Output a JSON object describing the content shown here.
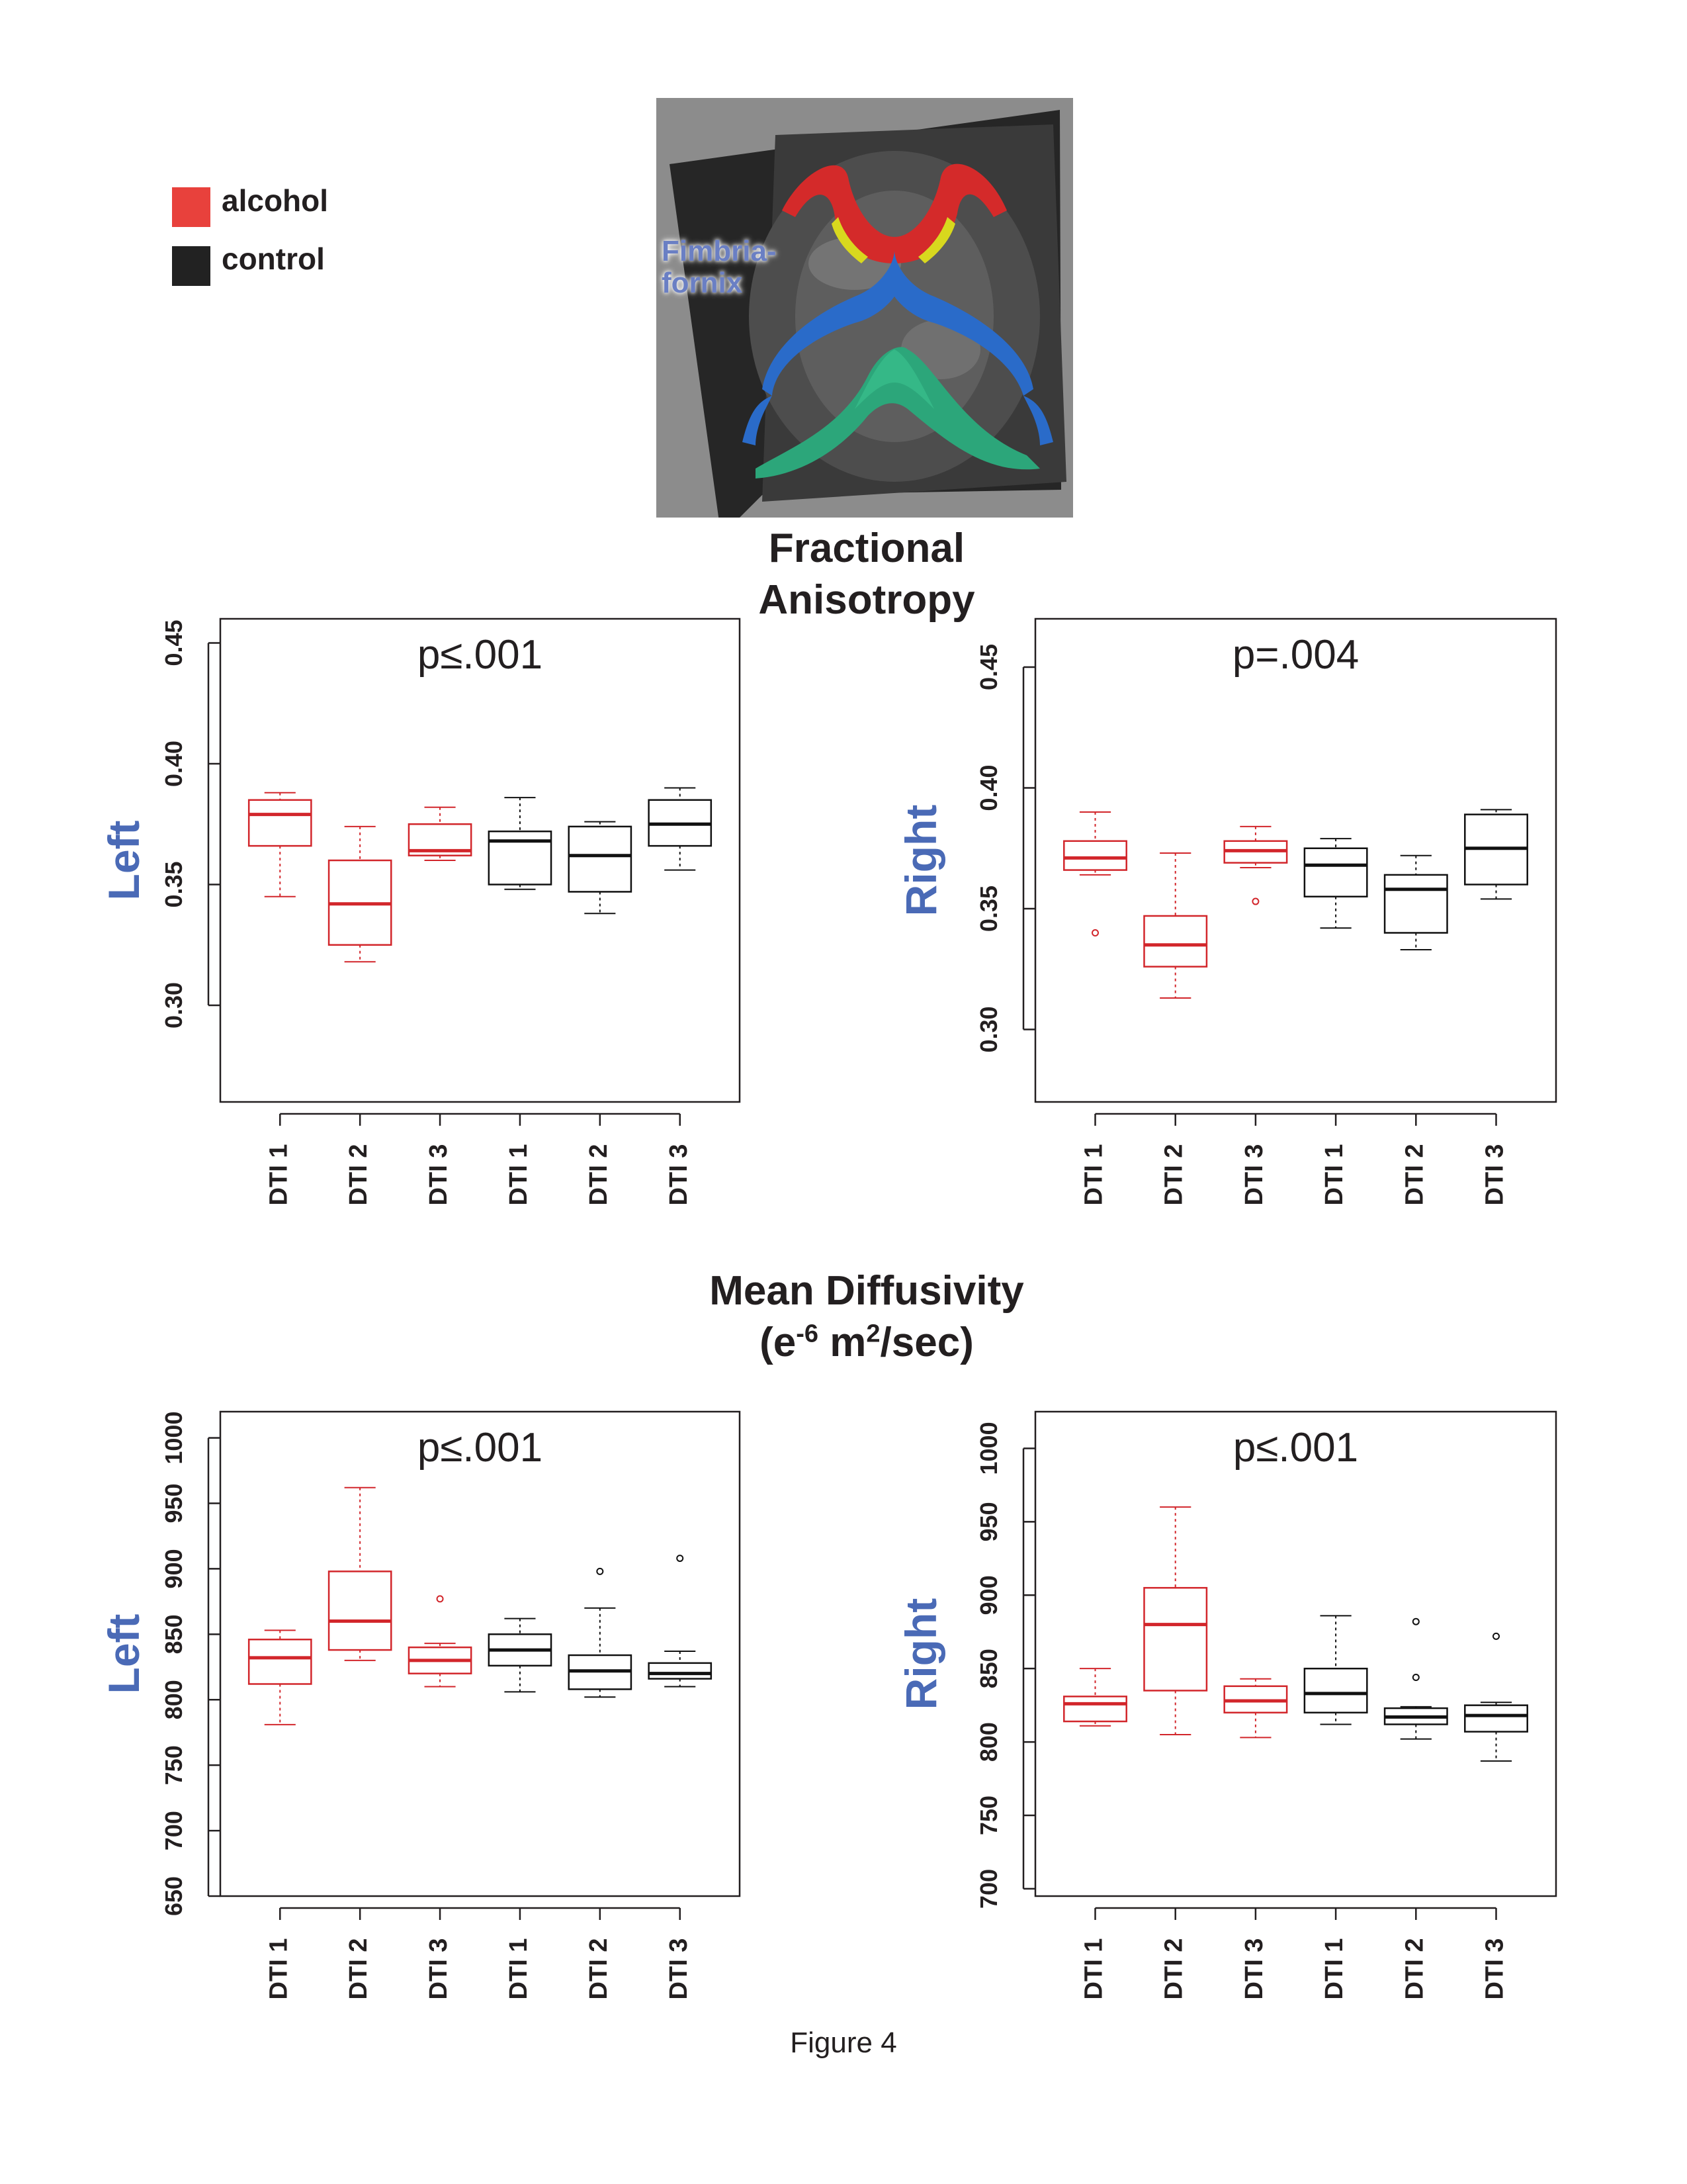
{
  "legend": {
    "items": [
      {
        "label": "alcohol",
        "color": "#e8413c"
      },
      {
        "label": "control",
        "color": "#222222"
      }
    ]
  },
  "brain_image": {
    "label_line1": "Fimbria-",
    "label_line2": "fornix"
  },
  "sections": {
    "fa_title_line1": "Fractional",
    "fa_title_line2": "Anisotropy",
    "md_title_line1": "Mean Diffusivity",
    "md_title_line2_a": "(e",
    "md_title_line2_sup1": "-6",
    "md_title_line2_b": " m",
    "md_title_line2_sup2": "2",
    "md_title_line2_c": "/sec)"
  },
  "caption": "Figure 4",
  "colors": {
    "alcohol": "#d2262b",
    "control": "#111111",
    "side_label": "#4a6ab6"
  },
  "chart_data": [
    {
      "type": "box",
      "id": "fa_left",
      "title": "p≤.001",
      "ylabel": "Left",
      "ylim": [
        0.26,
        0.46
      ],
      "yticks": [
        "0.30",
        "0.35",
        "0.40",
        "0.45"
      ],
      "yticks_values": [
        0.3,
        0.35,
        0.4,
        0.45
      ],
      "categories": [
        "DTI 1",
        "DTI 2",
        "DTI 3",
        "DTI 1",
        "DTI 2",
        "DTI 3"
      ],
      "groups": [
        "alcohol",
        "alcohol",
        "alcohol",
        "control",
        "control",
        "control"
      ],
      "boxes": [
        {
          "min": 0.345,
          "q1": 0.366,
          "median": 0.379,
          "q3": 0.385,
          "max": 0.388,
          "outliers": []
        },
        {
          "min": 0.318,
          "q1": 0.325,
          "median": 0.342,
          "q3": 0.36,
          "max": 0.374,
          "outliers": []
        },
        {
          "min": 0.36,
          "q1": 0.362,
          "median": 0.364,
          "q3": 0.375,
          "max": 0.382,
          "outliers": []
        },
        {
          "min": 0.348,
          "q1": 0.35,
          "median": 0.368,
          "q3": 0.372,
          "max": 0.386,
          "outliers": []
        },
        {
          "min": 0.338,
          "q1": 0.347,
          "median": 0.362,
          "q3": 0.374,
          "max": 0.376,
          "outliers": []
        },
        {
          "min": 0.356,
          "q1": 0.366,
          "median": 0.375,
          "q3": 0.385,
          "max": 0.39,
          "outliers": []
        }
      ]
    },
    {
      "type": "box",
      "id": "fa_right",
      "title": "p=.004",
      "ylabel": "Right",
      "ylim": [
        0.27,
        0.47
      ],
      "yticks": [
        "0.30",
        "0.35",
        "0.40",
        "0.45"
      ],
      "yticks_values": [
        0.3,
        0.35,
        0.4,
        0.45
      ],
      "categories": [
        "DTI 1",
        "DTI 2",
        "DTI 3",
        "DTI 1",
        "DTI 2",
        "DTI 3"
      ],
      "groups": [
        "alcohol",
        "alcohol",
        "alcohol",
        "control",
        "control",
        "control"
      ],
      "boxes": [
        {
          "min": 0.364,
          "q1": 0.366,
          "median": 0.371,
          "q3": 0.378,
          "max": 0.39,
          "outliers": [
            0.34
          ]
        },
        {
          "min": 0.313,
          "q1": 0.326,
          "median": 0.335,
          "q3": 0.347,
          "max": 0.373,
          "outliers": []
        },
        {
          "min": 0.367,
          "q1": 0.369,
          "median": 0.374,
          "q3": 0.378,
          "max": 0.384,
          "outliers": [
            0.353
          ]
        },
        {
          "min": 0.342,
          "q1": 0.355,
          "median": 0.368,
          "q3": 0.375,
          "max": 0.379,
          "outliers": []
        },
        {
          "min": 0.333,
          "q1": 0.34,
          "median": 0.358,
          "q3": 0.364,
          "max": 0.372,
          "outliers": []
        },
        {
          "min": 0.354,
          "q1": 0.36,
          "median": 0.375,
          "q3": 0.389,
          "max": 0.391,
          "outliers": []
        }
      ]
    },
    {
      "type": "box",
      "id": "md_left",
      "title": "p≤.001",
      "ylabel": "Left",
      "ylim": [
        650,
        1020
      ],
      "yticks": [
        "650",
        "700",
        "750",
        "800",
        "850",
        "900",
        "950",
        "1000"
      ],
      "yticks_values": [
        650,
        700,
        750,
        800,
        850,
        900,
        950,
        1000
      ],
      "categories": [
        "DTI 1",
        "DTI 2",
        "DTI 3",
        "DTI 1",
        "DTI 2",
        "DTI 3"
      ],
      "groups": [
        "alcohol",
        "alcohol",
        "alcohol",
        "control",
        "control",
        "control"
      ],
      "boxes": [
        {
          "min": 781,
          "q1": 812,
          "median": 832,
          "q3": 846,
          "max": 853,
          "outliers": []
        },
        {
          "min": 830,
          "q1": 838,
          "median": 860,
          "q3": 898,
          "max": 962,
          "outliers": []
        },
        {
          "min": 810,
          "q1": 820,
          "median": 830,
          "q3": 840,
          "max": 843,
          "outliers": [
            877
          ]
        },
        {
          "min": 806,
          "q1": 826,
          "median": 838,
          "q3": 850,
          "max": 862,
          "outliers": []
        },
        {
          "min": 802,
          "q1": 808,
          "median": 822,
          "q3": 834,
          "max": 870,
          "outliers": [
            898
          ]
        },
        {
          "min": 810,
          "q1": 816,
          "median": 820,
          "q3": 828,
          "max": 837,
          "outliers": [
            908
          ]
        }
      ]
    },
    {
      "type": "box",
      "id": "md_right",
      "title": "p≤.001",
      "ylabel": "Right",
      "ylim": [
        695,
        1025
      ],
      "yticks": [
        "700",
        "750",
        "800",
        "850",
        "900",
        "950",
        "1000"
      ],
      "yticks_values": [
        700,
        750,
        800,
        850,
        900,
        950,
        1000
      ],
      "categories": [
        "DTI 1",
        "DTI 2",
        "DTI 3",
        "DTI 1",
        "DTI 2",
        "DTI 3"
      ],
      "groups": [
        "alcohol",
        "alcohol",
        "alcohol",
        "control",
        "control",
        "control"
      ],
      "boxes": [
        {
          "min": 811,
          "q1": 814,
          "median": 826,
          "q3": 831,
          "max": 850,
          "outliers": []
        },
        {
          "min": 805,
          "q1": 835,
          "median": 880,
          "q3": 905,
          "max": 960,
          "outliers": []
        },
        {
          "min": 803,
          "q1": 820,
          "median": 828,
          "q3": 838,
          "max": 843,
          "outliers": []
        },
        {
          "min": 812,
          "q1": 820,
          "median": 833,
          "q3": 850,
          "max": 886,
          "outliers": []
        },
        {
          "min": 802,
          "q1": 812,
          "median": 817,
          "q3": 823,
          "max": 824,
          "outliers": [
            844,
            882
          ]
        },
        {
          "min": 787,
          "q1": 807,
          "median": 818,
          "q3": 825,
          "max": 827,
          "outliers": [
            872
          ]
        }
      ]
    }
  ]
}
